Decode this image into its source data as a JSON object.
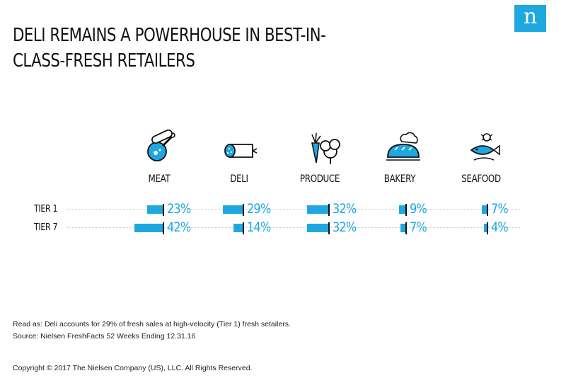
{
  "logo": {
    "letter": "n"
  },
  "chart_data": {
    "type": "bar",
    "title": "DELI REMAINS A POWERHOUSE IN BEST-IN-CLASS-FRESH RETAILERS",
    "categories": [
      "MEAT",
      "DELI",
      "PRODUCE",
      "BAKERY",
      "SEAFOOD"
    ],
    "series": [
      {
        "name": "TIER 1",
        "values": [
          23,
          29,
          32,
          9,
          7
        ],
        "labels": [
          "23%",
          "29%",
          "32%",
          "9%",
          "7%"
        ]
      },
      {
        "name": "TIER 7",
        "values": [
          42,
          14,
          32,
          7,
          4
        ],
        "labels": [
          "42%",
          "14%",
          "32%",
          "7%",
          "4%"
        ]
      }
    ],
    "unit": "%",
    "color": "#1fa8e0"
  },
  "icons": [
    "meat-icon",
    "deli-icon",
    "produce-icon",
    "bakery-icon",
    "seafood-icon"
  ],
  "notes": {
    "read_as": "Read as: Deli accounts for 29% of fresh sales at high-velocity (Tier 1) fresh setailers.",
    "source": "Source: Nielsen FreshFacts 52 Weeks Ending 12.31.16"
  },
  "copyright": "Copyright © 2017 The Nielsen Company (US), LLC. All Rights Reserved."
}
